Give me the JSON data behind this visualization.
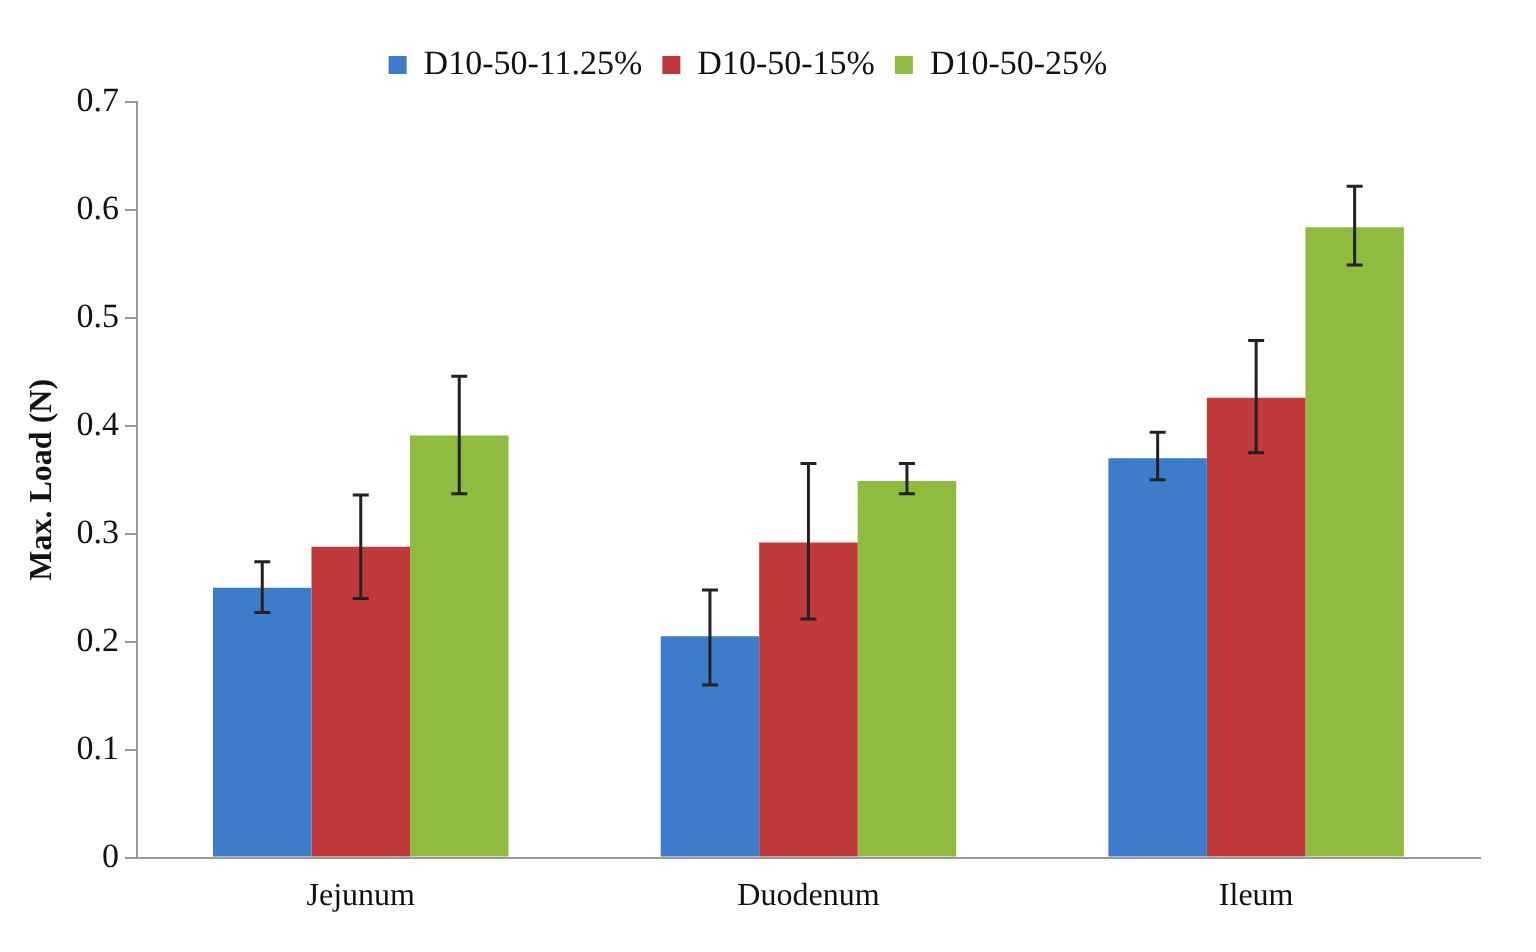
{
  "chart_data": {
    "type": "bar",
    "ylabel": "Max. Load (N)",
    "categories": [
      "Jejunum",
      "Duodenum",
      "Ileum"
    ],
    "series": [
      {
        "name": "D10-50-11.25%",
        "color": "#3d7cc9",
        "values": [
          0.25,
          0.205,
          0.37
        ],
        "errors": [
          [
            0.227,
            0.274
          ],
          [
            0.16,
            0.248
          ],
          [
            0.35,
            0.394
          ]
        ]
      },
      {
        "name": "D10-50-15%",
        "color": "#c0393b",
        "values": [
          0.288,
          0.292,
          0.426
        ],
        "errors": [
          [
            0.24,
            0.336
          ],
          [
            0.221,
            0.365
          ],
          [
            0.375,
            0.479
          ]
        ]
      },
      {
        "name": "D10-50-25%",
        "color": "#8fbc3f",
        "values": [
          0.391,
          0.349,
          0.584
        ],
        "errors": [
          [
            0.337,
            0.446
          ],
          [
            0.337,
            0.365
          ],
          [
            0.549,
            0.622
          ]
        ]
      }
    ],
    "ylim": [
      0,
      0.7
    ],
    "yticks": [
      0,
      0.1,
      0.2,
      0.3,
      0.4,
      0.5,
      0.6,
      0.7
    ],
    "grid": false,
    "legend": "top"
  }
}
